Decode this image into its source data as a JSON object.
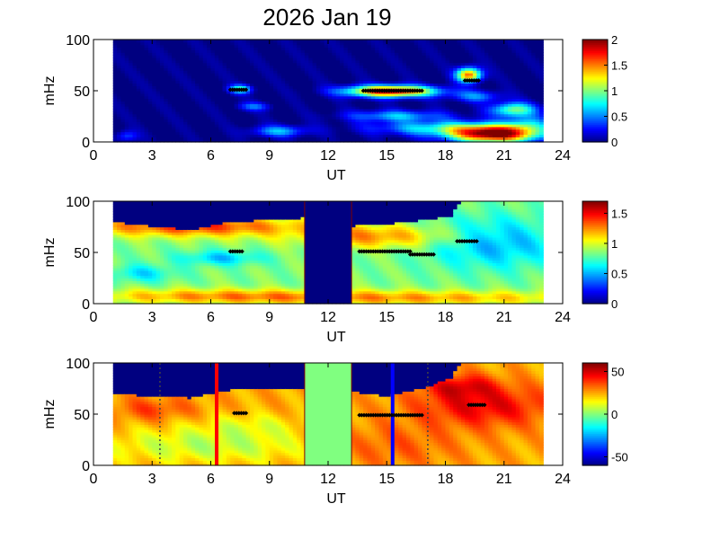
{
  "figure": {
    "title": "2026 Jan 19"
  },
  "chart_data": [
    {
      "type": "heatmap",
      "xlabel": "UT",
      "ylabel": "mHz",
      "xlim": [
        0,
        24
      ],
      "ylim": [
        0,
        100
      ],
      "xticks": [
        "0",
        "3",
        "6",
        "9",
        "12",
        "15",
        "18",
        "21",
        "24"
      ],
      "yticks": [
        "0",
        "50",
        "100"
      ],
      "data_x_range": [
        1,
        23
      ],
      "colorbar": {
        "range": [
          0,
          2
        ],
        "ticks": [
          "0",
          "0.5",
          "1",
          "1.5",
          "2"
        ]
      },
      "background_value": 0,
      "blobs": [
        {
          "x": 20.5,
          "y": 8,
          "sx": 1.6,
          "sy": 6,
          "v": 2.0
        },
        {
          "x": 17.8,
          "y": 14,
          "sx": 2.5,
          "sy": 5,
          "v": 0.7
        },
        {
          "x": 15.2,
          "y": 50,
          "sx": 1.6,
          "sy": 4,
          "v": 1.9
        },
        {
          "x": 15.5,
          "y": 26,
          "sx": 1.8,
          "sy": 4,
          "v": 0.6
        },
        {
          "x": 21.5,
          "y": 32,
          "sx": 0.8,
          "sy": 5,
          "v": 1.0
        },
        {
          "x": 19.2,
          "y": 66,
          "sx": 0.45,
          "sy": 5,
          "v": 1.6
        },
        {
          "x": 19.6,
          "y": 45,
          "sx": 0.9,
          "sy": 4,
          "v": 0.5
        },
        {
          "x": 9.5,
          "y": 11,
          "sx": 1.0,
          "sy": 4,
          "v": 0.6
        },
        {
          "x": 8.2,
          "y": 35,
          "sx": 0.6,
          "sy": 3,
          "v": 0.45
        },
        {
          "x": 7.5,
          "y": 52,
          "sx": 0.4,
          "sy": 3,
          "v": 0.9
        },
        {
          "x": 1.7,
          "y": 6,
          "sx": 0.4,
          "sy": 4,
          "v": 0.4
        },
        {
          "x": 22.2,
          "y": 18,
          "sx": 0.8,
          "sy": 6,
          "v": 0.5
        }
      ],
      "marker_segments": [
        {
          "x0": 7.0,
          "x1": 7.8,
          "y": 51
        },
        {
          "x0": 13.8,
          "x1": 16.8,
          "y": 50
        },
        {
          "x0": 19.0,
          "x1": 19.7,
          "y": 60
        }
      ]
    },
    {
      "type": "heatmap",
      "xlabel": "UT",
      "ylabel": "mHz",
      "xlim": [
        0,
        24
      ],
      "ylim": [
        0,
        100
      ],
      "xticks": [
        "0",
        "3",
        "6",
        "9",
        "12",
        "15",
        "18",
        "21",
        "24"
      ],
      "yticks": [
        "0",
        "50",
        "100"
      ],
      "data_x_range": [
        1,
        23
      ],
      "colorbar": {
        "range": [
          0,
          1.7
        ],
        "ticks": [
          "0",
          "0.5",
          "1",
          "1.5"
        ]
      },
      "gaps": [
        [
          10.8,
          13.2
        ]
      ],
      "background_value": 0.85,
      "blobs": [
        {
          "x": 5.0,
          "y": 76,
          "sx": 4.0,
          "sy": 7,
          "v": 0.55
        },
        {
          "x": 14.5,
          "y": 66,
          "sx": 3.0,
          "sy": 8,
          "v": 0.4
        },
        {
          "x": 6.0,
          "y": 8,
          "sx": 5.0,
          "sy": 5,
          "v": 0.3
        },
        {
          "x": 16.0,
          "y": 6,
          "sx": 7.0,
          "sy": 5,
          "v": 0.35
        },
        {
          "x": 6.5,
          "y": 45,
          "sx": 1.5,
          "sy": 5,
          "v": -0.3
        },
        {
          "x": 20.5,
          "y": 60,
          "sx": 2.5,
          "sy": 18,
          "v": -0.35
        },
        {
          "x": 2.5,
          "y": 30,
          "sx": 1.2,
          "sy": 6,
          "v": -0.25
        }
      ],
      "high_cutoff": [
        {
          "x": 1.0,
          "y": 80
        },
        {
          "x": 3.0,
          "y": 76
        },
        {
          "x": 5.0,
          "y": 72
        },
        {
          "x": 7.0,
          "y": 80
        },
        {
          "x": 9.0,
          "y": 82
        },
        {
          "x": 10.8,
          "y": 84
        },
        {
          "x": 13.2,
          "y": 76
        },
        {
          "x": 15.0,
          "y": 78
        },
        {
          "x": 17.0,
          "y": 82
        },
        {
          "x": 18.3,
          "y": 86
        },
        {
          "x": 18.8,
          "y": 100
        },
        {
          "x": 23.0,
          "y": 100
        }
      ],
      "marker_segments": [
        {
          "x0": 7.0,
          "x1": 7.6,
          "y": 51
        },
        {
          "x0": 13.6,
          "x1": 16.2,
          "y": 51
        },
        {
          "x0": 16.2,
          "x1": 17.4,
          "y": 48
        },
        {
          "x0": 18.6,
          "x1": 19.6,
          "y": 61
        }
      ]
    },
    {
      "type": "heatmap",
      "xlabel": "UT",
      "ylabel": "mHz",
      "xlim": [
        0,
        24
      ],
      "ylim": [
        0,
        100
      ],
      "xticks": [
        "0",
        "3",
        "6",
        "9",
        "12",
        "15",
        "18",
        "21",
        "24"
      ],
      "yticks": [
        "0",
        "50",
        "100"
      ],
      "data_x_range": [
        1,
        23
      ],
      "colorbar": {
        "range": [
          -60,
          60
        ],
        "ticks": [
          "50",
          "0",
          "-50"
        ],
        "tick_values": [
          50,
          0,
          -50
        ]
      },
      "gaps": [
        [
          10.8,
          13.2
        ]
      ],
      "gap_value": 0,
      "background_value": 25,
      "blobs": [
        {
          "x": 20.0,
          "y": 58,
          "sx": 2.5,
          "sy": 14,
          "v": 22
        },
        {
          "x": 18.8,
          "y": 78,
          "sx": 1.3,
          "sy": 8,
          "v": 20
        },
        {
          "x": 15.0,
          "y": 20,
          "sx": 2.5,
          "sy": 15,
          "v": 10
        },
        {
          "x": 6.0,
          "y": 20,
          "sx": 4.0,
          "sy": 12,
          "v": -18
        },
        {
          "x": 3.0,
          "y": 55,
          "sx": 1.5,
          "sy": 8,
          "v": 12
        },
        {
          "x": 8.0,
          "y": 40,
          "sx": 2.0,
          "sy": 8,
          "v": -10
        }
      ],
      "high_cutoff": [
        {
          "x": 1.0,
          "y": 70
        },
        {
          "x": 3.0,
          "y": 68
        },
        {
          "x": 5.0,
          "y": 66
        },
        {
          "x": 7.0,
          "y": 74
        },
        {
          "x": 9.0,
          "y": 76
        },
        {
          "x": 10.8,
          "y": 74
        },
        {
          "x": 13.2,
          "y": 72
        },
        {
          "x": 15.0,
          "y": 68
        },
        {
          "x": 17.0,
          "y": 76
        },
        {
          "x": 18.3,
          "y": 86
        },
        {
          "x": 18.8,
          "y": 100
        },
        {
          "x": 23.0,
          "y": 100
        }
      ],
      "marker_segments": [
        {
          "x0": 13.6,
          "x1": 16.8,
          "y": 49
        },
        {
          "x0": 19.2,
          "x1": 20.0,
          "y": 59
        },
        {
          "x0": 7.2,
          "x1": 7.8,
          "y": 51
        }
      ],
      "vlines": [
        {
          "x": 6.3,
          "color": "#ff0000",
          "style": "solid"
        },
        {
          "x": 15.3,
          "color": "#0000ff",
          "style": "solid"
        },
        {
          "x": 3.4,
          "color": "#444444",
          "style": "dotted"
        },
        {
          "x": 17.1,
          "color": "#444444",
          "style": "dotted"
        }
      ]
    }
  ]
}
